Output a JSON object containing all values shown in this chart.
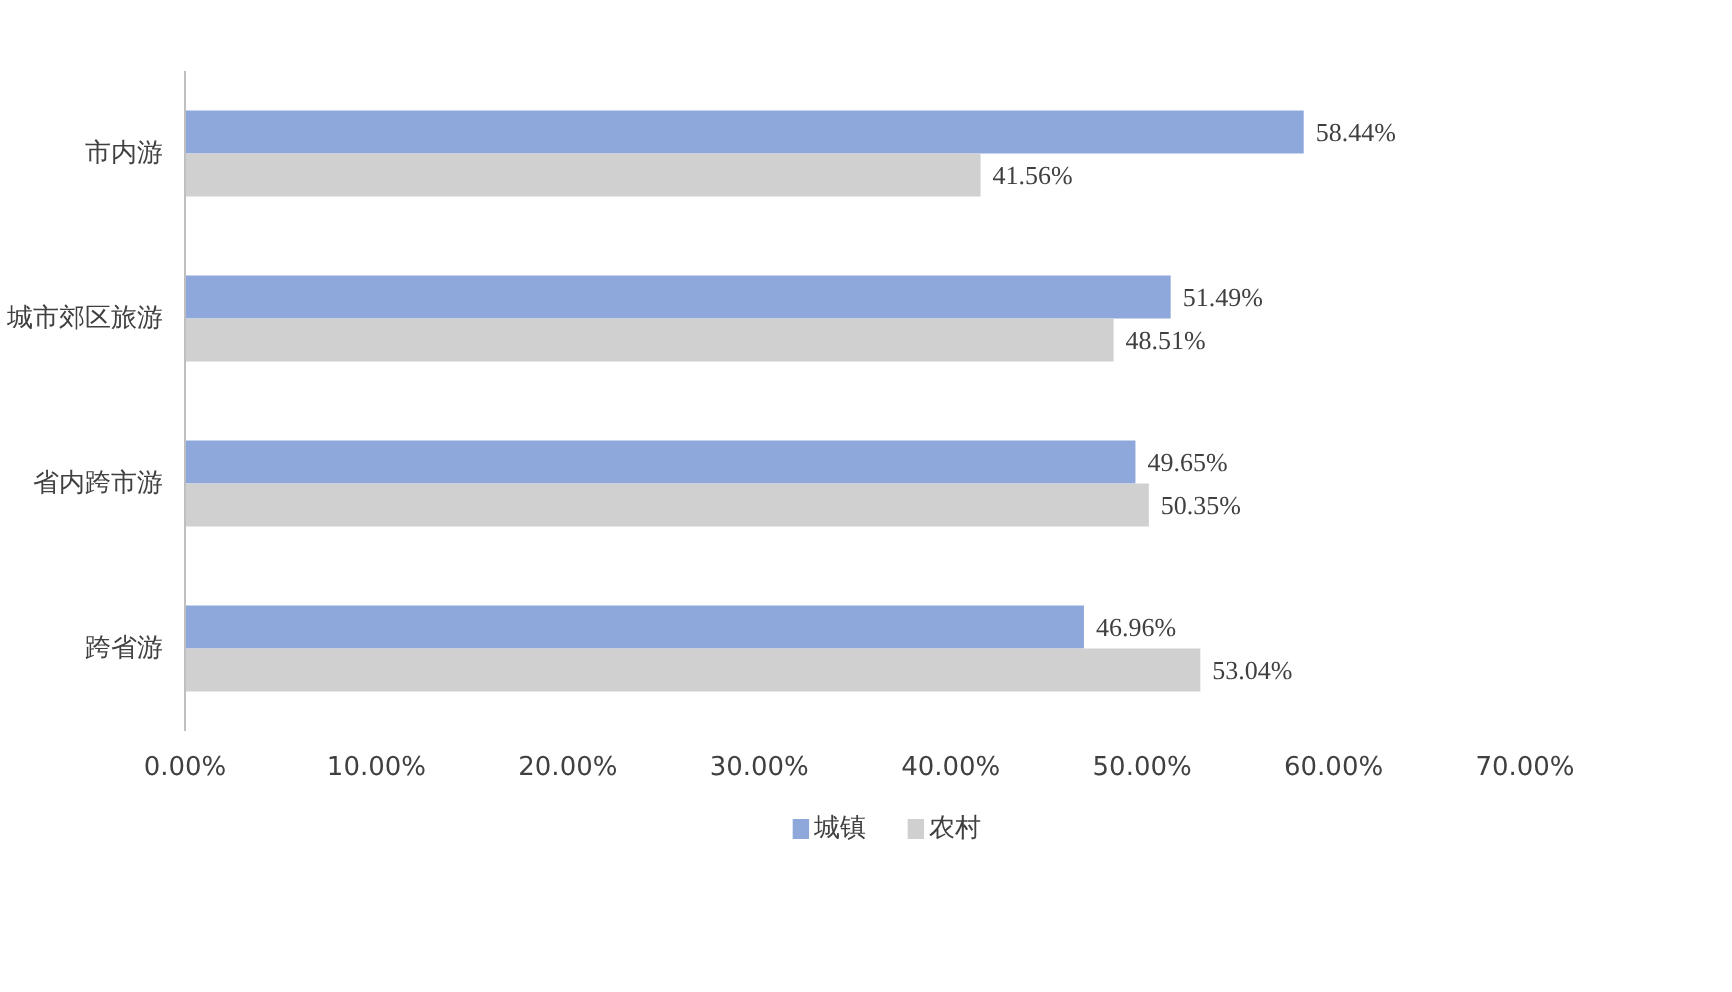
{
  "chart_data": {
    "type": "bar",
    "orientation": "horizontal",
    "categories": [
      "市内游",
      "城市郊区旅游",
      "省内跨市游",
      "跨省游"
    ],
    "series": [
      {
        "name": "城镇",
        "color": "#8fa8dc",
        "values": [
          58.44,
          51.49,
          49.65,
          46.96
        ],
        "value_labels": [
          "58.44%",
          "51.49%",
          "49.65%",
          "46.96%"
        ]
      },
      {
        "name": "农村",
        "color": "#d0d0d0",
        "values": [
          41.56,
          48.51,
          50.35,
          53.04
        ],
        "value_labels": [
          "41.56%",
          "48.51%",
          "50.35%",
          "53.04%"
        ]
      }
    ],
    "xlim": [
      0,
      70
    ],
    "xticks": [
      {
        "value": 0,
        "label": "0.00%"
      },
      {
        "value": 10,
        "label": "10.00%"
      },
      {
        "value": 20,
        "label": "20.00%"
      },
      {
        "value": 30,
        "label": "30.00%"
      },
      {
        "value": 40,
        "label": "40.00%"
      },
      {
        "value": 50,
        "label": "50.00%"
      },
      {
        "value": 60,
        "label": "60.00%"
      },
      {
        "value": 70,
        "label": "70.00%"
      }
    ],
    "grid": false,
    "legend": "bottom"
  }
}
